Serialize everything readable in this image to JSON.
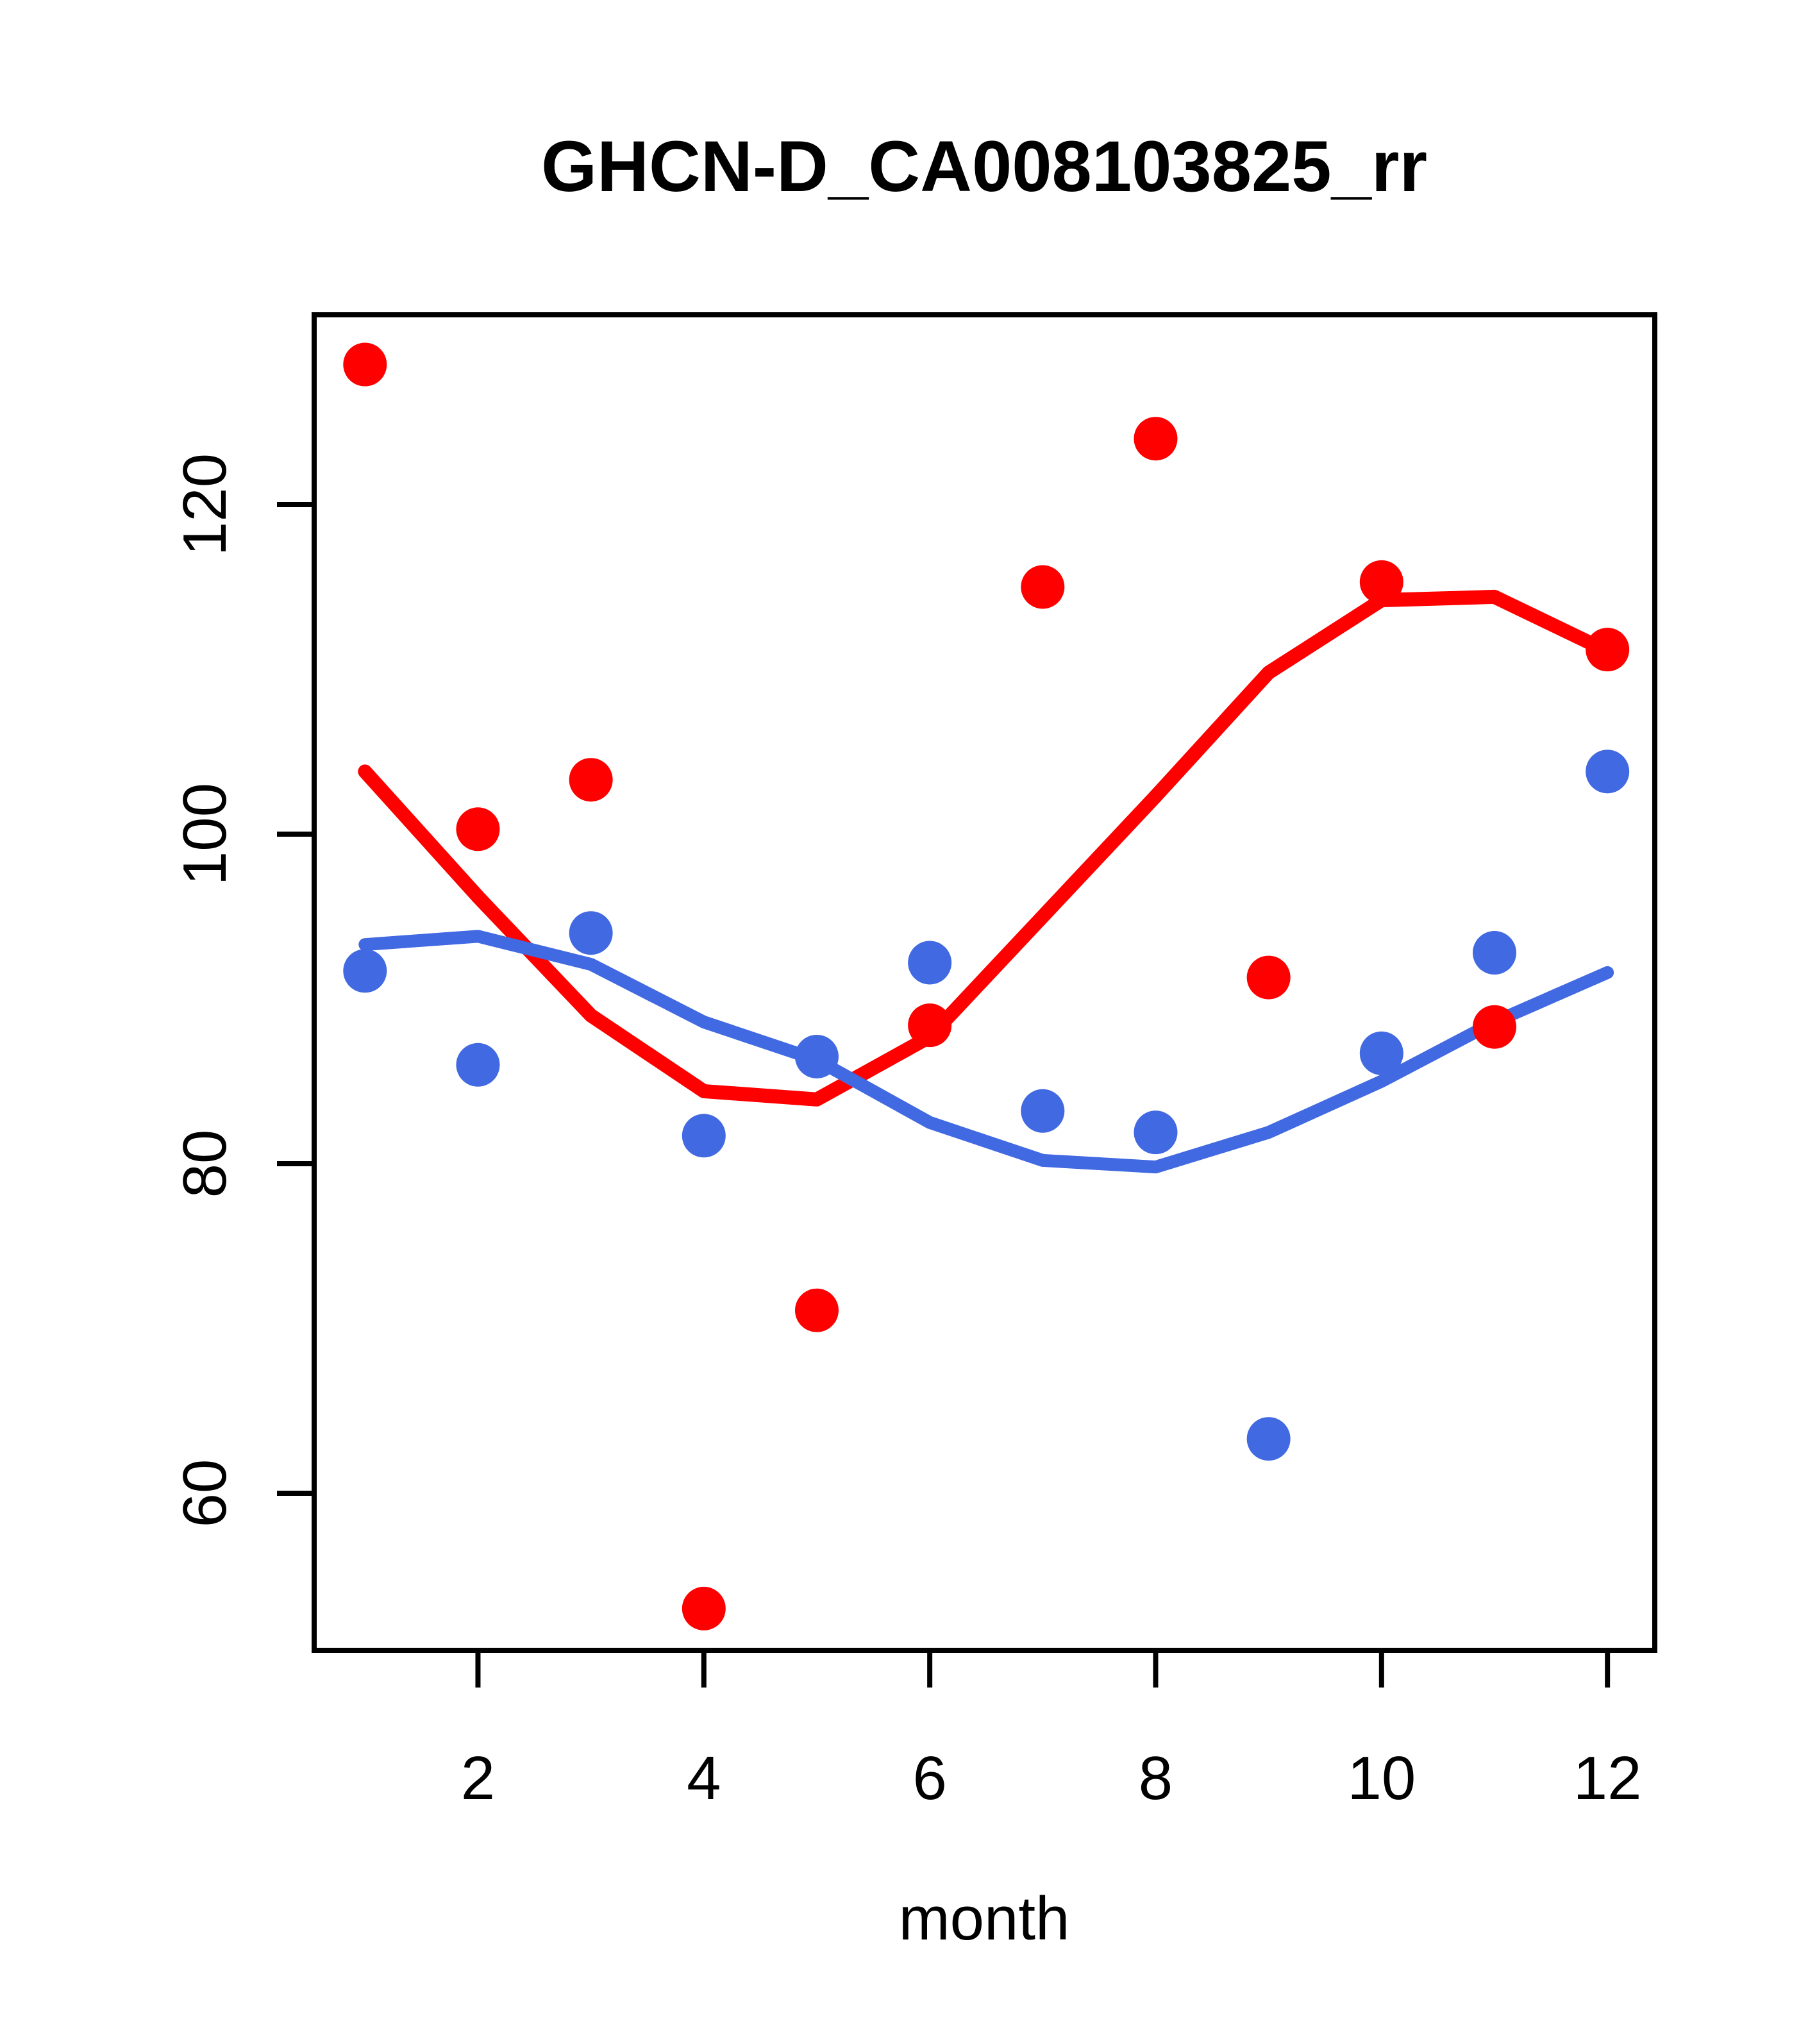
{
  "title": "GHCN-D_CA008103825_rr",
  "colors": {
    "red_series": "#FF0000",
    "blue_series": "#4169E1",
    "axis": "#000000",
    "background": "#FFFFFF"
  },
  "chart_data": {
    "type": "scatter",
    "title": "GHCN-D_CA008103825_rr",
    "xlabel": "month",
    "ylabel": "",
    "x": [
      1,
      2,
      3,
      4,
      5,
      6,
      7,
      8,
      9,
      10,
      11,
      12
    ],
    "x_ticks": [
      2,
      4,
      6,
      8,
      10,
      12
    ],
    "y_ticks": [
      60,
      80,
      100,
      120
    ],
    "xlim": [
      0.56,
      12.44
    ],
    "ylim": [
      49.7,
      132.3
    ],
    "grid": false,
    "legend": null,
    "series": [
      {
        "name": "red points",
        "kind": "scatter",
        "color": "#FF0000",
        "values": [
          128.5,
          100.3,
          103.3,
          53.0,
          71.1,
          88.4,
          115.0,
          124.0,
          91.3,
          115.3,
          88.3,
          111.2
        ]
      },
      {
        "name": "blue points",
        "kind": "scatter",
        "color": "#4169E1",
        "values": [
          91.7,
          86.0,
          94.0,
          81.7,
          86.5,
          92.2,
          83.2,
          81.9,
          63.3,
          86.7,
          92.8,
          103.8
        ]
      },
      {
        "name": "red smooth line",
        "kind": "line",
        "color": "#FF0000",
        "values": [
          103.8,
          96.2,
          89.0,
          84.4,
          83.9,
          87.7,
          95.0,
          102.3,
          109.8,
          114.2,
          114.4,
          111.1
        ]
      },
      {
        "name": "blue smooth line",
        "kind": "line",
        "color": "#4169E1",
        "values": [
          93.3,
          93.8,
          92.1,
          88.6,
          86.3,
          82.5,
          80.2,
          79.8,
          81.9,
          85.0,
          88.6,
          91.6
        ]
      }
    ]
  }
}
